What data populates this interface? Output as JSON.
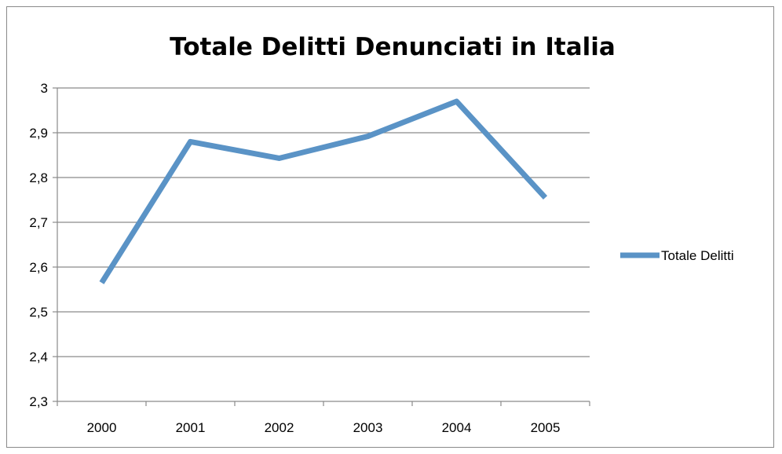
{
  "chart_data": {
    "type": "line",
    "title": "Totale Delitti Denunciati in Italia",
    "categories": [
      "2000",
      "2001",
      "2002",
      "2003",
      "2004",
      "2005"
    ],
    "series": [
      {
        "name": "Totale Delitti",
        "values": [
          2.565,
          2.88,
          2.843,
          2.892,
          2.97,
          2.755
        ],
        "color": "#5a93c6"
      }
    ],
    "ylim": [
      2.3,
      3.0
    ],
    "yticks": [
      2.3,
      2.4,
      2.5,
      2.6,
      2.7,
      2.8,
      2.9,
      3.0
    ],
    "ytick_labels": [
      "2,3",
      "2,4",
      "2,5",
      "2,6",
      "2,7",
      "2,8",
      "2,9",
      "3"
    ],
    "grid": true,
    "legend_position": "right"
  }
}
